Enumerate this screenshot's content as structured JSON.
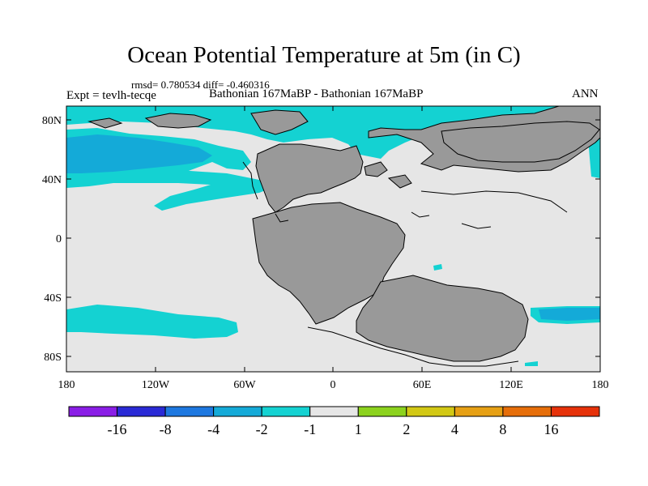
{
  "title": "Ocean Potential Temperature at 5m (in C)",
  "stats_line": "rmsd= 0.780534 diff= -0.460316",
  "experiment_label": "Expt = tevlh-tecqe",
  "experiments_compared": "Bathonian 167MaBP - Bathonian 167MaBP",
  "season": "ANN",
  "axes": {
    "y_labels": [
      "80N",
      "40N",
      "0",
      "40S",
      "80S"
    ],
    "x_labels": [
      "180",
      "120W",
      "60W",
      "0",
      "60E",
      "120E",
      "180"
    ]
  },
  "colorbar": {
    "colors": [
      "#8a1ee6",
      "#2a2ad6",
      "#1e78e0",
      "#14aad8",
      "#14d2d2",
      "#e6e6e6",
      "#8cd21e",
      "#d2c814",
      "#e6a014",
      "#e66e0a",
      "#e6320a"
    ],
    "tick_labels": [
      "-16",
      "-8",
      "-4",
      "-2",
      "-1",
      "1",
      "2",
      "4",
      "8",
      "16"
    ]
  },
  "colors": {
    "land": "#999999",
    "ocean_neutral": "#e6e6e6",
    "cyan": "#14d2d2",
    "light_blue": "#14aad8"
  }
}
